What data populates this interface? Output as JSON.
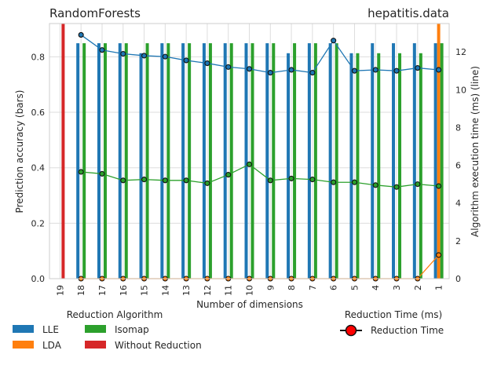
{
  "chart_data": {
    "type": "bar",
    "title_left": "RandomForests",
    "title_right": "hepatitis.data",
    "xlabel": "Number of dimensions",
    "ylabel_left": "Prediction accuracy (bars)",
    "ylabel_right": "Algorithm execution time (ms) (line)",
    "categories": [
      "19",
      "18",
      "17",
      "16",
      "15",
      "14",
      "13",
      "12",
      "11",
      "10",
      "9",
      "8",
      "7",
      "6",
      "5",
      "4",
      "3",
      "2",
      "1"
    ],
    "ylim_left": [
      0,
      0.92
    ],
    "yticks_left": [
      "0.0",
      "0.2",
      "0.4",
      "0.6",
      "0.8"
    ],
    "ylim_right": [
      0,
      13.5
    ],
    "yticks_right": [
      "0",
      "2",
      "4",
      "6",
      "8",
      "10",
      "12"
    ],
    "grid": true,
    "colors": {
      "LLE": "#1f77b4",
      "LDA": "#ff7f0e",
      "Isomap": "#2ca02c",
      "Without Reduction": "#d62728"
    },
    "bar_series": [
      {
        "name": "LLE",
        "values": [
          null,
          0.849,
          0.849,
          0.849,
          0.813,
          0.849,
          0.849,
          0.849,
          0.849,
          0.849,
          0.849,
          0.813,
          0.849,
          0.849,
          0.813,
          0.849,
          0.849,
          0.849,
          0.849
        ]
      },
      {
        "name": "LDA",
        "values": [
          null,
          0,
          0,
          0,
          0,
          0,
          0,
          0,
          0,
          0,
          0,
          0,
          0,
          0,
          0,
          0,
          0,
          0,
          0.92
        ]
      },
      {
        "name": "Isomap",
        "values": [
          null,
          0.849,
          0.849,
          0.849,
          0.849,
          0.849,
          0.849,
          0.849,
          0.849,
          0.849,
          0.849,
          0.849,
          0.849,
          0.849,
          0.813,
          0.813,
          0.813,
          0.813,
          0.849
        ]
      },
      {
        "name": "Without Reduction",
        "values": [
          0.92,
          null,
          null,
          null,
          null,
          null,
          null,
          null,
          null,
          null,
          null,
          null,
          null,
          null,
          null,
          null,
          null,
          null,
          null
        ]
      }
    ],
    "line_series": [
      {
        "name": "LLE",
        "values": [
          null,
          12.9,
          12.1,
          11.9,
          11.8,
          11.75,
          11.55,
          11.4,
          11.2,
          11.1,
          10.9,
          11.05,
          10.9,
          12.6,
          11.0,
          11.05,
          11.0,
          11.15,
          11.05
        ]
      },
      {
        "name": "LDA",
        "values": [
          null,
          0,
          0,
          0,
          0,
          0,
          0,
          0,
          0,
          0,
          0,
          0,
          0,
          0,
          0,
          0,
          0,
          0,
          1.25
        ]
      },
      {
        "name": "Isomap",
        "values": [
          null,
          5.65,
          5.55,
          5.2,
          5.25,
          5.2,
          5.2,
          5.05,
          5.5,
          6.05,
          5.2,
          5.3,
          5.25,
          5.1,
          5.1,
          4.95,
          4.85,
          5.0,
          4.9
        ]
      }
    ],
    "legend_left_title": "Reduction Algorithm",
    "legend_left_items": [
      "LLE",
      "LDA",
      "Isomap",
      "Without Reduction"
    ],
    "legend_right_title": "Reduction Time (ms)",
    "legend_right_items": [
      "Reduction Time"
    ],
    "legend_placement": "bottom"
  }
}
